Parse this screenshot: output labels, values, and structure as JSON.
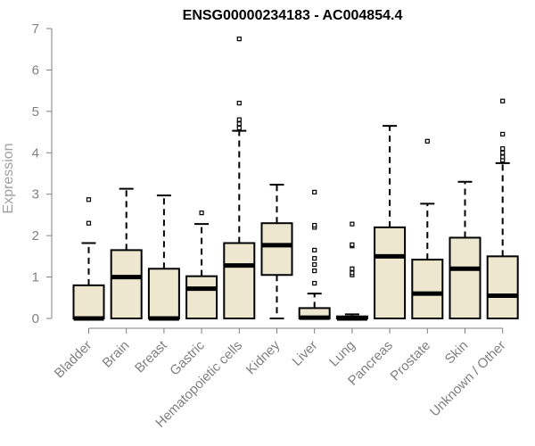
{
  "chart_data": {
    "type": "box",
    "title": "ENSG00000234183 - AC004854.4",
    "ylabel": "Expression",
    "xlabel": "",
    "ylim": [
      0,
      7
    ],
    "yticks": [
      0,
      1,
      2,
      3,
      4,
      5,
      6,
      7
    ],
    "box_color": "#EEE7CF",
    "categories": [
      "Bladder",
      "Brain",
      "Breast",
      "Gastric",
      "Hematopoietic cells",
      "Kidney",
      "Liver",
      "Lung",
      "Pancreas",
      "Prostate",
      "Skin",
      "Unknown / Other"
    ],
    "boxes": [
      {
        "min": 0.0,
        "q1": 0.0,
        "median": 0.0,
        "q3": 0.8,
        "max": 1.82,
        "outliers": [
          2.3,
          2.87
        ]
      },
      {
        "min": 0.0,
        "q1": 0.0,
        "median": 1.0,
        "q3": 1.65,
        "max": 3.13,
        "outliers": []
      },
      {
        "min": 0.0,
        "q1": 0.0,
        "median": 0.0,
        "q3": 1.2,
        "max": 2.97,
        "outliers": []
      },
      {
        "min": 0.0,
        "q1": 0.0,
        "median": 0.72,
        "q3": 1.02,
        "max": 2.28,
        "outliers": [
          2.55
        ]
      },
      {
        "min": 0.0,
        "q1": 0.0,
        "median": 1.28,
        "q3": 1.82,
        "max": 4.53,
        "outliers": [
          4.6,
          4.7,
          4.8,
          5.2,
          6.75
        ]
      },
      {
        "min": 0.0,
        "q1": 1.05,
        "median": 1.77,
        "q3": 2.3,
        "max": 3.23,
        "outliers": []
      },
      {
        "min": 0.0,
        "q1": 0.0,
        "median": 0.02,
        "q3": 0.25,
        "max": 0.6,
        "outliers": [
          0.85,
          1.15,
          1.3,
          1.45,
          1.65,
          2.2,
          2.25,
          3.05
        ]
      },
      {
        "min": 0.0,
        "q1": 0.0,
        "median": 0.0,
        "q3": 0.05,
        "max": 0.1,
        "outliers": [
          1.05,
          1.1,
          1.2,
          1.75,
          1.78,
          2.28
        ]
      },
      {
        "min": 0.0,
        "q1": 0.0,
        "median": 1.5,
        "q3": 2.2,
        "max": 4.65,
        "outliers": []
      },
      {
        "min": 0.0,
        "q1": 0.0,
        "median": 0.6,
        "q3": 1.42,
        "max": 2.77,
        "outliers": [
          4.28
        ]
      },
      {
        "min": 0.0,
        "q1": 0.0,
        "median": 1.2,
        "q3": 1.95,
        "max": 3.3,
        "outliers": []
      },
      {
        "min": 0.0,
        "q1": 0.0,
        "median": 0.55,
        "q3": 1.5,
        "max": 3.75,
        "outliers": [
          3.82,
          3.9,
          4.0,
          4.1,
          4.45,
          5.25
        ]
      }
    ]
  }
}
